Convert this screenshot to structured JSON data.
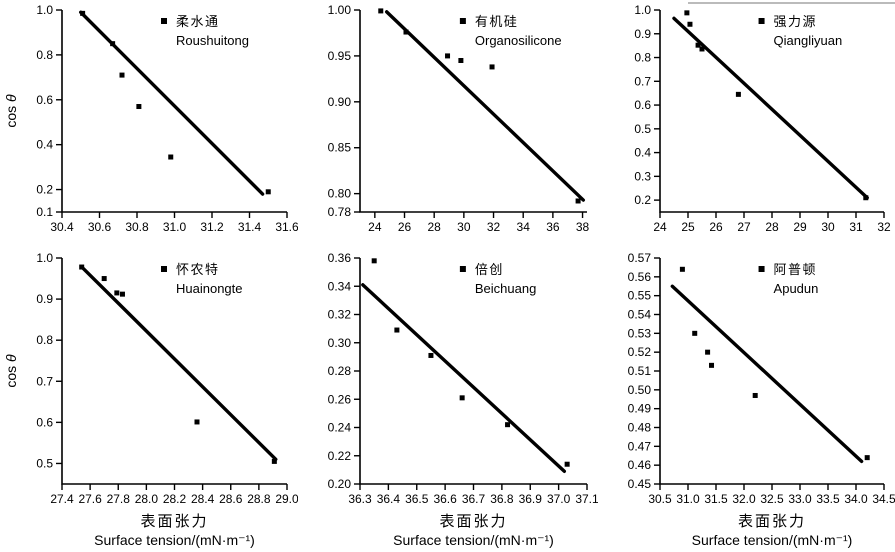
{
  "figure": {
    "background": "#ffffff",
    "ink": "#000000",
    "artifact_line_color": "#bbbbbb"
  },
  "chart_data": [
    {
      "type": "scatter",
      "legend_zh": "柔水通",
      "legend_en": "Roushuitong",
      "ylabel": "cos θ",
      "xlabel_zh": null,
      "xlabel_en": null,
      "xlim": [
        30.4,
        31.6
      ],
      "xticks": [
        "30.4",
        "30.6",
        "30.8",
        "31.0",
        "31.2",
        "31.4",
        "31.6"
      ],
      "ylim": [
        0.1,
        1.0
      ],
      "yticks": [
        "0.1",
        "0.2",
        "0.4",
        "0.6",
        "0.8",
        "1.0"
      ],
      "points": [
        [
          30.51,
          0.985
        ],
        [
          30.67,
          0.85
        ],
        [
          30.72,
          0.71
        ],
        [
          30.81,
          0.57
        ],
        [
          30.98,
          0.345
        ],
        [
          31.5,
          0.19
        ]
      ],
      "trend": [
        [
          30.5,
          0.99
        ],
        [
          31.47,
          0.18
        ]
      ]
    },
    {
      "type": "scatter",
      "legend_zh": "有机硅",
      "legend_en": "Organosilicone",
      "ylabel": null,
      "xlabel_zh": null,
      "xlabel_en": null,
      "xlim": [
        23.0,
        38.3
      ],
      "xticks": [
        "24",
        "26",
        "28",
        "30",
        "32",
        "34",
        "36",
        "38"
      ],
      "ylim": [
        0.78,
        1.0
      ],
      "yticks": [
        "0.78",
        "0.80",
        "0.85",
        "0.90",
        "0.95",
        "1.00"
      ],
      "points": [
        [
          24.4,
          0.999
        ],
        [
          26.1,
          0.976
        ],
        [
          28.9,
          0.95
        ],
        [
          29.8,
          0.945
        ],
        [
          31.9,
          0.938
        ],
        [
          37.7,
          0.792
        ]
      ],
      "trend": [
        [
          24.8,
          0.998
        ],
        [
          38.05,
          0.793
        ]
      ]
    },
    {
      "type": "scatter",
      "legend_zh": "强力源",
      "legend_en": "Qiangliyuan",
      "ylabel": null,
      "xlabel_zh": null,
      "xlabel_en": null,
      "xlim": [
        24.0,
        32.0
      ],
      "xticks": [
        "24",
        "25",
        "26",
        "27",
        "28",
        "29",
        "30",
        "31",
        "32"
      ],
      "ylim": [
        0.15,
        1.0
      ],
      "yticks": [
        "0.2",
        "0.3",
        "0.4",
        "0.5",
        "0.6",
        "0.7",
        "0.8",
        "0.9",
        "1.0"
      ],
      "points": [
        [
          24.96,
          0.988
        ],
        [
          25.07,
          0.94
        ],
        [
          25.36,
          0.852
        ],
        [
          25.5,
          0.836
        ],
        [
          26.8,
          0.645
        ],
        [
          31.35,
          0.21
        ]
      ],
      "trend": [
        [
          24.5,
          0.965
        ],
        [
          31.4,
          0.21
        ]
      ]
    },
    {
      "type": "scatter",
      "legend_zh": "怀农特",
      "legend_en": "Huainongte",
      "ylabel": "cos θ",
      "xlabel_zh": "表面张力",
      "xlabel_en": "Surface tension/(mN·m⁻¹)",
      "xlim": [
        27.4,
        29.0
      ],
      "xticks": [
        "27.4",
        "27.6",
        "27.8",
        "28.0",
        "28.2",
        "28.4",
        "28.6",
        "28.8",
        "29.0"
      ],
      "ylim": [
        0.45,
        1.0
      ],
      "yticks": [
        "0.5",
        "0.6",
        "0.7",
        "0.8",
        "0.9",
        "1.0"
      ],
      "points": [
        [
          27.54,
          0.978
        ],
        [
          27.7,
          0.95
        ],
        [
          27.79,
          0.915
        ],
        [
          27.83,
          0.912
        ],
        [
          28.36,
          0.601
        ],
        [
          28.91,
          0.505
        ]
      ],
      "trend": [
        [
          27.55,
          0.975
        ],
        [
          28.92,
          0.51
        ]
      ]
    },
    {
      "type": "scatter",
      "legend_zh": "倍创",
      "legend_en": "Beichuang",
      "ylabel": null,
      "xlabel_zh": "表面张力",
      "xlabel_en": "Surface tension/(mN·m⁻¹)",
      "xlim": [
        36.3,
        37.1
      ],
      "xticks": [
        "36.3",
        "36.4",
        "36.5",
        "36.6",
        "36.7",
        "36.8",
        "36.9",
        "37.0",
        "37.1"
      ],
      "ylim": [
        0.2,
        0.36
      ],
      "yticks": [
        "0.20",
        "0.22",
        "0.24",
        "0.26",
        "0.28",
        "0.30",
        "0.32",
        "0.34",
        "0.36"
      ],
      "points": [
        [
          36.35,
          0.358
        ],
        [
          36.43,
          0.309
        ],
        [
          36.55,
          0.291
        ],
        [
          36.66,
          0.261
        ],
        [
          36.82,
          0.242
        ],
        [
          37.03,
          0.214
        ]
      ],
      "trend": [
        [
          36.31,
          0.341
        ],
        [
          37.02,
          0.209
        ]
      ]
    },
    {
      "type": "scatter",
      "legend_zh": "阿普顿",
      "legend_en": "Apudun",
      "ylabel": null,
      "xlabel_zh": "表面张力",
      "xlabel_en": "Surface tension/(mN·m⁻¹)",
      "xlim": [
        30.5,
        34.5
      ],
      "xticks": [
        "30.5",
        "31.0",
        "31.5",
        "32.0",
        "32.5",
        "33.0",
        "33.5",
        "34.0",
        "34.5"
      ],
      "ylim": [
        0.45,
        0.57
      ],
      "yticks": [
        "0.45",
        "0.46",
        "0.47",
        "0.48",
        "0.49",
        "0.50",
        "0.51",
        "0.52",
        "0.53",
        "0.54",
        "0.55",
        "0.56",
        "0.57"
      ],
      "points": [
        [
          30.9,
          0.564
        ],
        [
          31.12,
          0.53
        ],
        [
          31.35,
          0.52
        ],
        [
          31.42,
          0.513
        ],
        [
          32.2,
          0.497
        ],
        [
          34.2,
          0.464
        ]
      ],
      "trend": [
        [
          30.72,
          0.555
        ],
        [
          34.1,
          0.462
        ]
      ]
    }
  ]
}
